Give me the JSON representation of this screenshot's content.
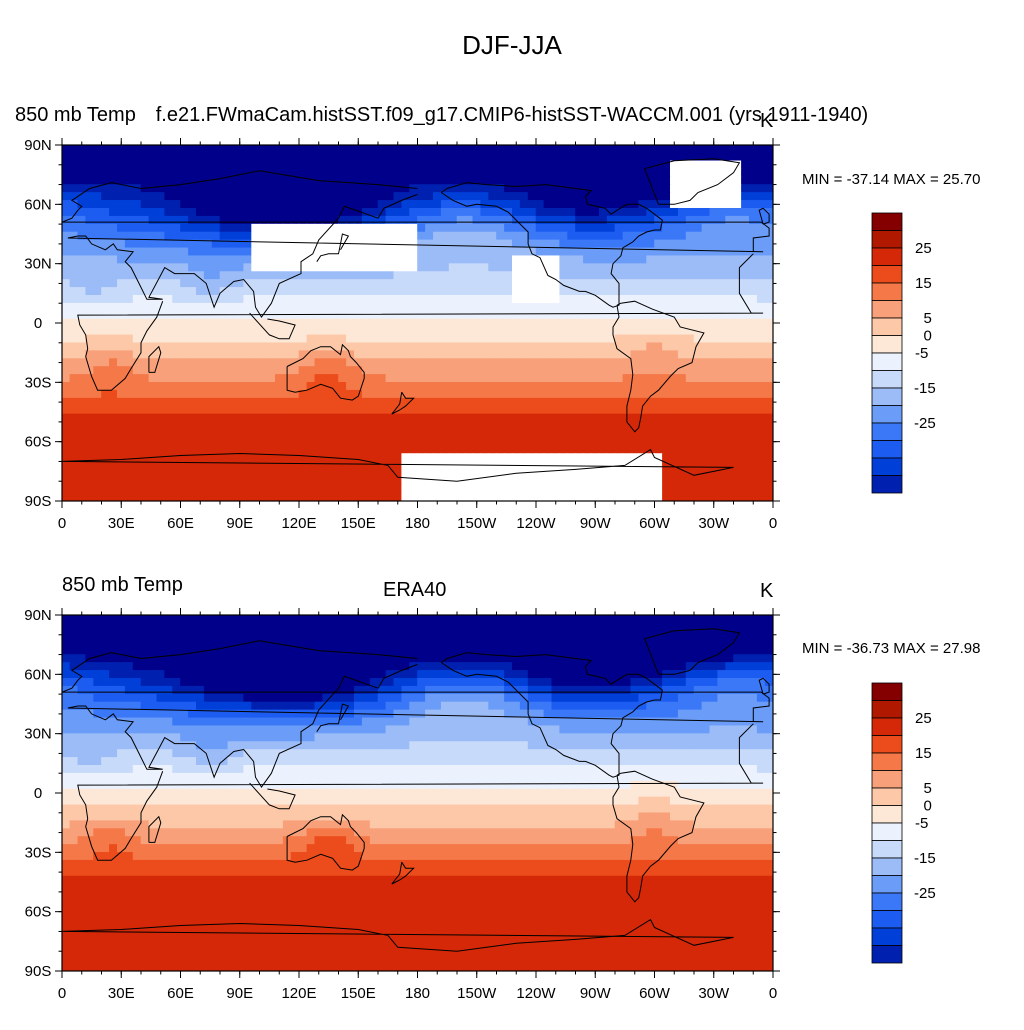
{
  "figure": {
    "title": "DJF-JJA"
  },
  "colors": {
    "levels": [
      -35,
      -30,
      -25,
      -20,
      -15,
      -10,
      -5,
      0,
      5,
      10,
      15,
      20,
      25,
      30
    ],
    "palette": [
      "#00008a",
      "#0021b0",
      "#0040d8",
      "#1c5cf0",
      "#3a78f8",
      "#6a9cf8",
      "#9cbcf8",
      "#c8dafa",
      "#ebf2fe",
      "#fde8d8",
      "#fcc8a8",
      "#f8a07a",
      "#f47848",
      "#ec4c1c",
      "#d42808",
      "#b01800",
      "#840000"
    ],
    "land_mask": "#ffffff",
    "coastline": "#000000"
  },
  "colorbar": {
    "labels": [
      "25",
      "15",
      "5",
      "0",
      "-5",
      "-15",
      "-25"
    ]
  },
  "chart_data": [
    {
      "type": "heatmap",
      "title_left": "850 mb Temp",
      "title_center": "f.e21.FWmaCam.histSST.f09_g17.CMIP6-histSST-WACCM.001 (yrs 1911-1940)",
      "title_right": "K",
      "min_max_text": "MIN = -37.14 MAX =  25.70",
      "min": -37.14,
      "max": 25.7,
      "x_ticks": [
        "0",
        "30E",
        "60E",
        "90E",
        "120E",
        "150E",
        "180",
        "150W",
        "120W",
        "90W",
        "60W",
        "30W",
        "0"
      ],
      "y_ticks": [
        "90N",
        "60N",
        "30N",
        "0",
        "30S",
        "60S",
        "90S"
      ],
      "xlim": [
        0,
        360
      ],
      "ylim": [
        -90,
        90
      ],
      "field_scale": 1.0,
      "masked_regions": [
        {
          "lon": [
            228,
            250
          ],
          "lat": [
            12,
            35
          ]
        },
        {
          "lon": [
            310,
            345
          ],
          "lat": [
            60,
            83
          ]
        },
        {
          "lon": [
            172,
            302
          ],
          "lat": [
            -90,
            -68
          ]
        },
        {
          "lon": [
            98,
            178
          ],
          "lat": [
            28,
            50
          ]
        }
      ]
    },
    {
      "type": "heatmap",
      "title_left": "850 mb Temp",
      "title_center": "ERA40",
      "title_right": "K",
      "min_max_text": "MIN = -36.73 MAX =  27.98",
      "min": -36.73,
      "max": 27.98,
      "x_ticks": [
        "0",
        "30E",
        "60E",
        "90E",
        "120E",
        "150E",
        "180",
        "150W",
        "120W",
        "90W",
        "60W",
        "30W",
        "0"
      ],
      "y_ticks": [
        "90N",
        "60N",
        "30N",
        "0",
        "30S",
        "60S",
        "90S"
      ],
      "xlim": [
        0,
        360
      ],
      "ylim": [
        -90,
        90
      ],
      "field_scale": 1.08,
      "masked_regions": []
    }
  ]
}
